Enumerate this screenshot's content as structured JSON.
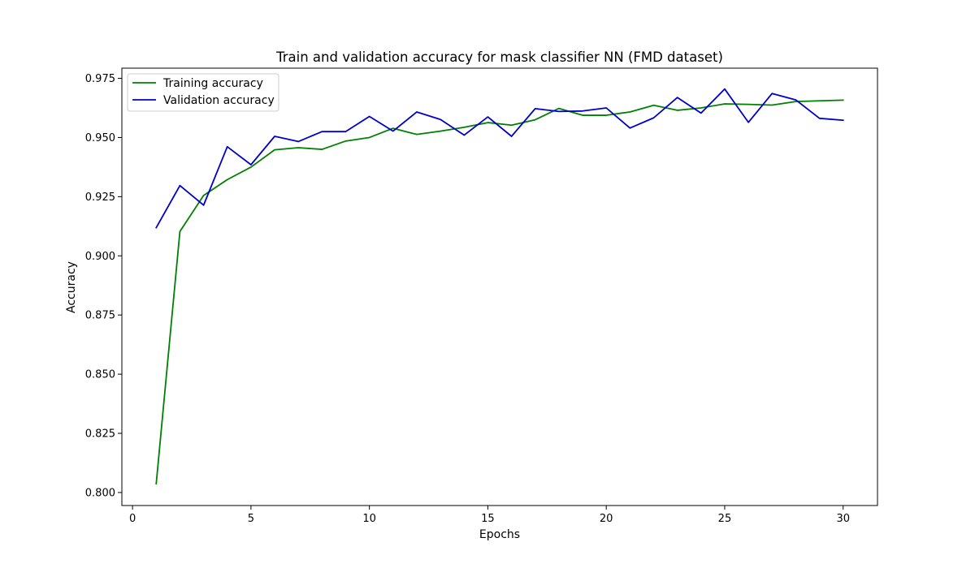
{
  "chart_data": {
    "type": "line",
    "title": "Train and validation accuracy for mask classifier NN (FMD dataset)",
    "xlabel": "Epochs",
    "ylabel": "Accuracy",
    "xlim": [
      -0.45,
      31.45
    ],
    "ylim": [
      0.7945,
      0.9793
    ],
    "xticks": [
      0,
      5,
      10,
      15,
      20,
      25,
      30
    ],
    "xtick_labels": [
      "0",
      "5",
      "10",
      "15",
      "20",
      "25",
      "30"
    ],
    "yticks": [
      0.8,
      0.825,
      0.85,
      0.875,
      0.9,
      0.925,
      0.95,
      0.975
    ],
    "ytick_labels": [
      "0.800",
      "0.825",
      "0.850",
      "0.875",
      "0.900",
      "0.925",
      "0.950",
      "0.975"
    ],
    "grid": false,
    "legend_position": "top-left",
    "x": [
      1,
      2,
      3,
      4,
      5,
      6,
      7,
      8,
      9,
      10,
      11,
      12,
      13,
      14,
      15,
      16,
      17,
      18,
      19,
      20,
      21,
      22,
      23,
      24,
      25,
      26,
      27,
      28,
      29,
      30
    ],
    "series": [
      {
        "name": "Training accuracy",
        "color": "#008000",
        "values": [
          0.8037,
          0.9103,
          0.9255,
          0.9322,
          0.9375,
          0.9448,
          0.9457,
          0.945,
          0.9485,
          0.95,
          0.9539,
          0.9513,
          0.9527,
          0.9543,
          0.9563,
          0.9552,
          0.9575,
          0.9623,
          0.9594,
          0.9594,
          0.9608,
          0.9636,
          0.9615,
          0.9625,
          0.9642,
          0.964,
          0.9637,
          0.9652,
          0.9655,
          0.9658
        ]
      },
      {
        "name": "Validation accuracy",
        "color": "#0000cc",
        "values": [
          0.9119,
          0.9297,
          0.9214,
          0.9461,
          0.9385,
          0.9505,
          0.9483,
          0.9525,
          0.9525,
          0.9589,
          0.9527,
          0.9608,
          0.9576,
          0.951,
          0.9587,
          0.9505,
          0.9622,
          0.961,
          0.9612,
          0.9625,
          0.954,
          0.9583,
          0.9669,
          0.9603,
          0.9705,
          0.9564,
          0.9686,
          0.9659,
          0.9581,
          0.9573
        ]
      }
    ]
  }
}
